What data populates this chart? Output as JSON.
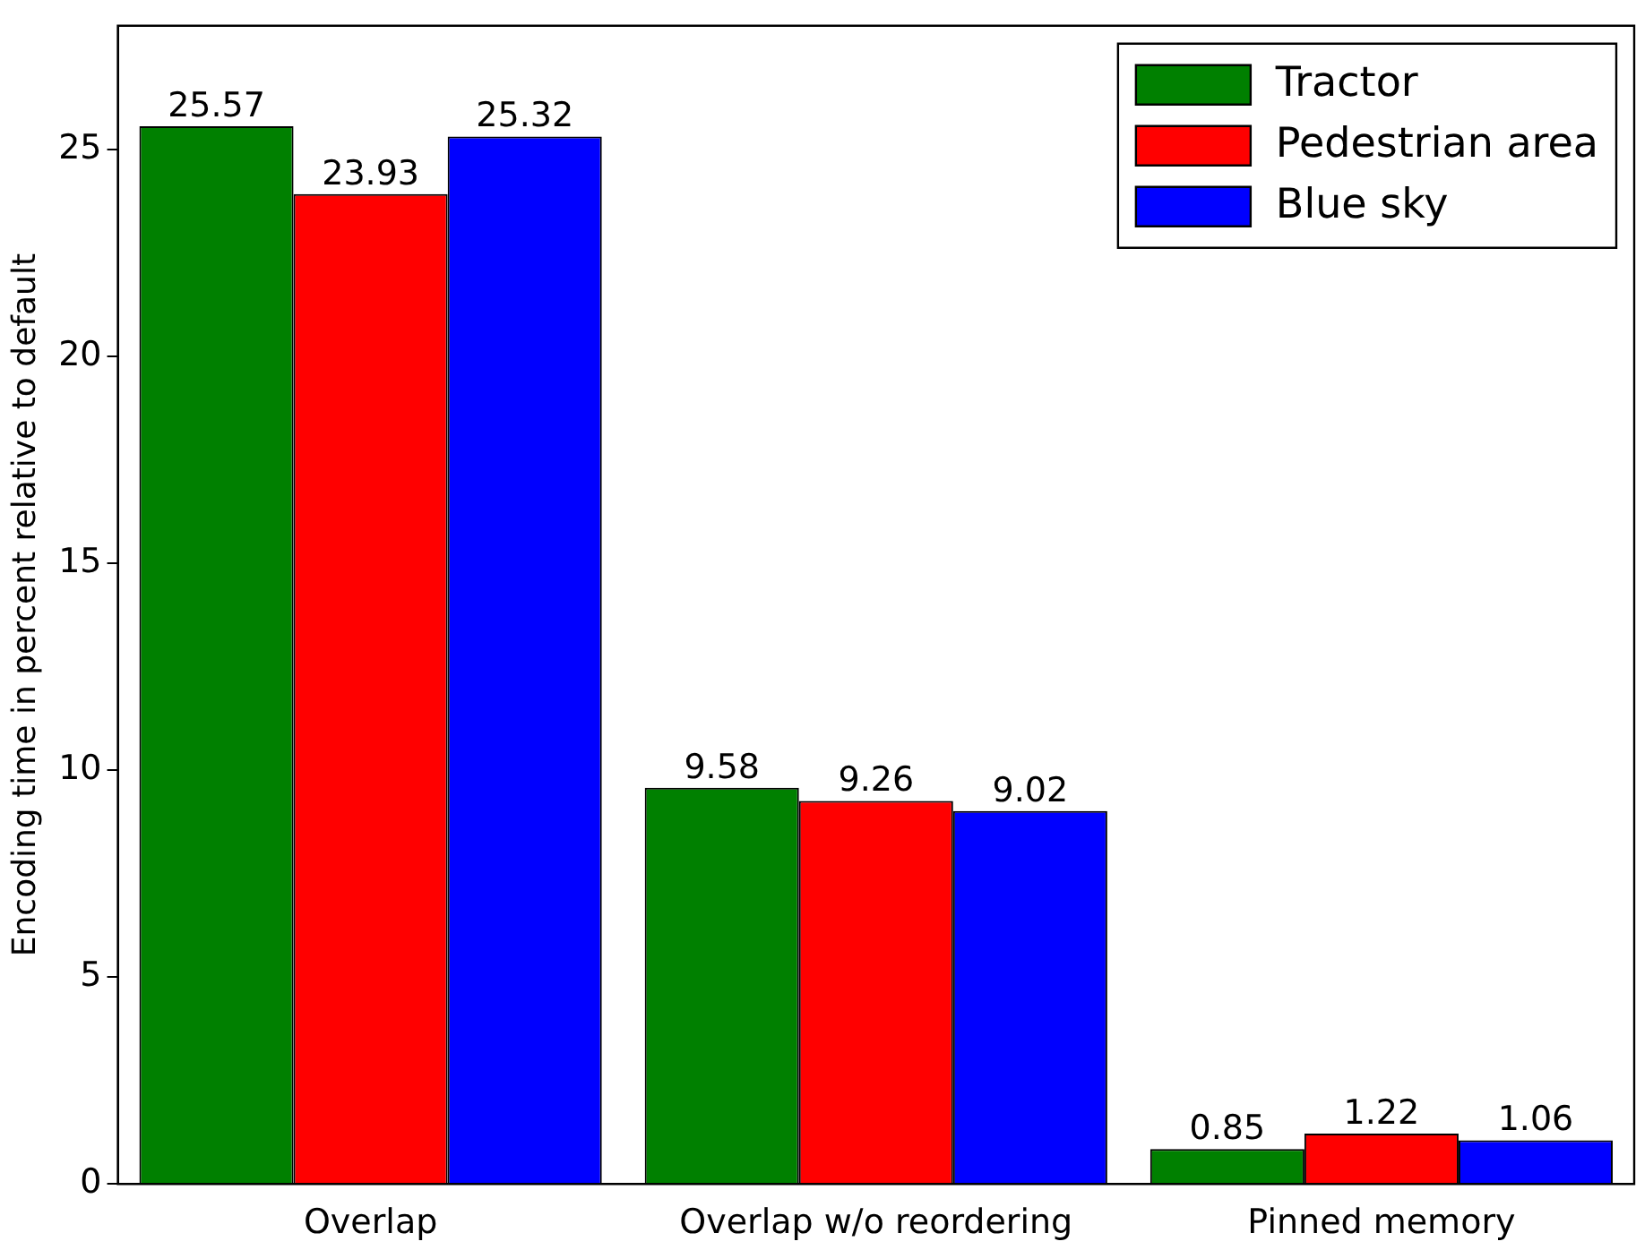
{
  "chart_data": {
    "type": "bar",
    "ylabel": "Encoding time in percent relative to default",
    "categories": [
      "Overlap",
      "Overlap w/o reordering",
      "Pinned memory"
    ],
    "series": [
      {
        "name": "Tractor",
        "color": "#008000",
        "values": [
          25.57,
          9.58,
          0.85
        ]
      },
      {
        "name": "Pedestrian area",
        "color": "#ff0000",
        "values": [
          23.93,
          9.26,
          1.22
        ]
      },
      {
        "name": "Blue sky",
        "color": "#0000ff",
        "values": [
          25.32,
          9.02,
          1.06
        ]
      }
    ],
    "ylim": [
      0,
      28
    ],
    "yticks": [
      0,
      5,
      10,
      15,
      20,
      25
    ],
    "grid": false,
    "legend": "top right",
    "data_labels": true
  }
}
